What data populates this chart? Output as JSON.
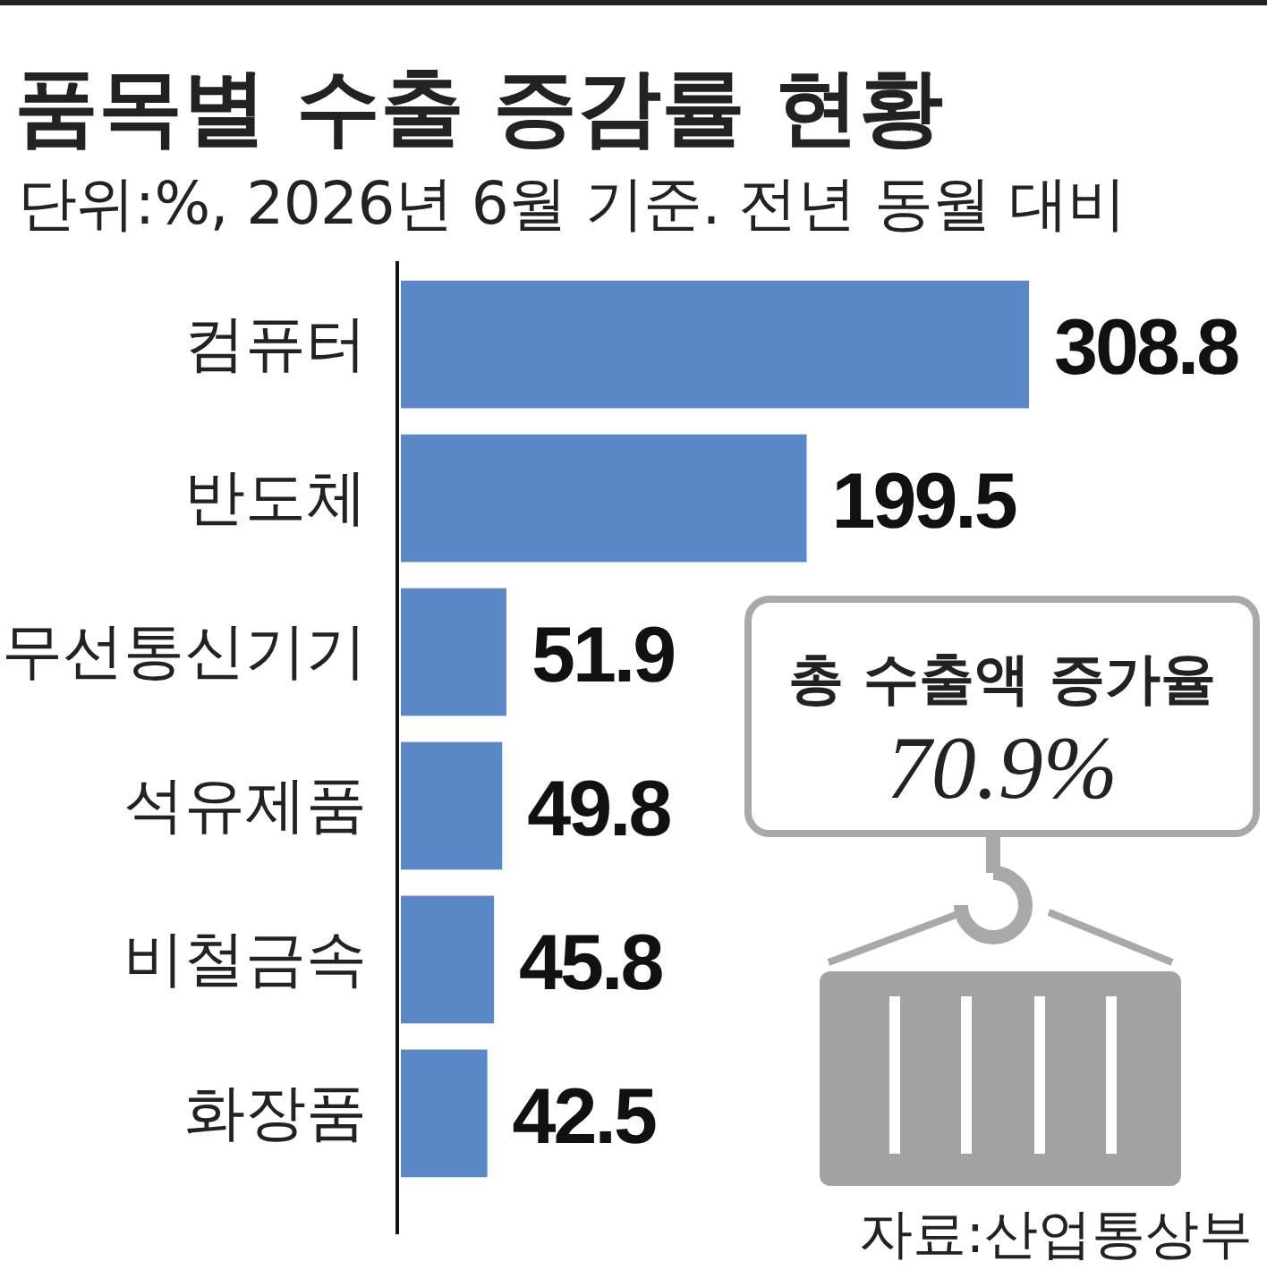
{
  "chart_data": {
    "type": "bar",
    "orientation": "horizontal",
    "title": "품목별 수출 증감률 현황",
    "subtitle": "단위:%, 2026년 6월 기준. 전년 동월 대비",
    "categories": [
      "컴퓨터",
      "반도체",
      "무선통신기기",
      "석유제품",
      "비철금속",
      "화장품"
    ],
    "values": [
      308.8,
      199.5,
      51.9,
      49.8,
      45.8,
      42.5
    ],
    "color": "#5b88c6",
    "data_labels": true,
    "tick_labels": "y",
    "annotations": [
      "총 수출액 증가율",
      "70.9%",
      "자료:산업통상부"
    ]
  }
}
